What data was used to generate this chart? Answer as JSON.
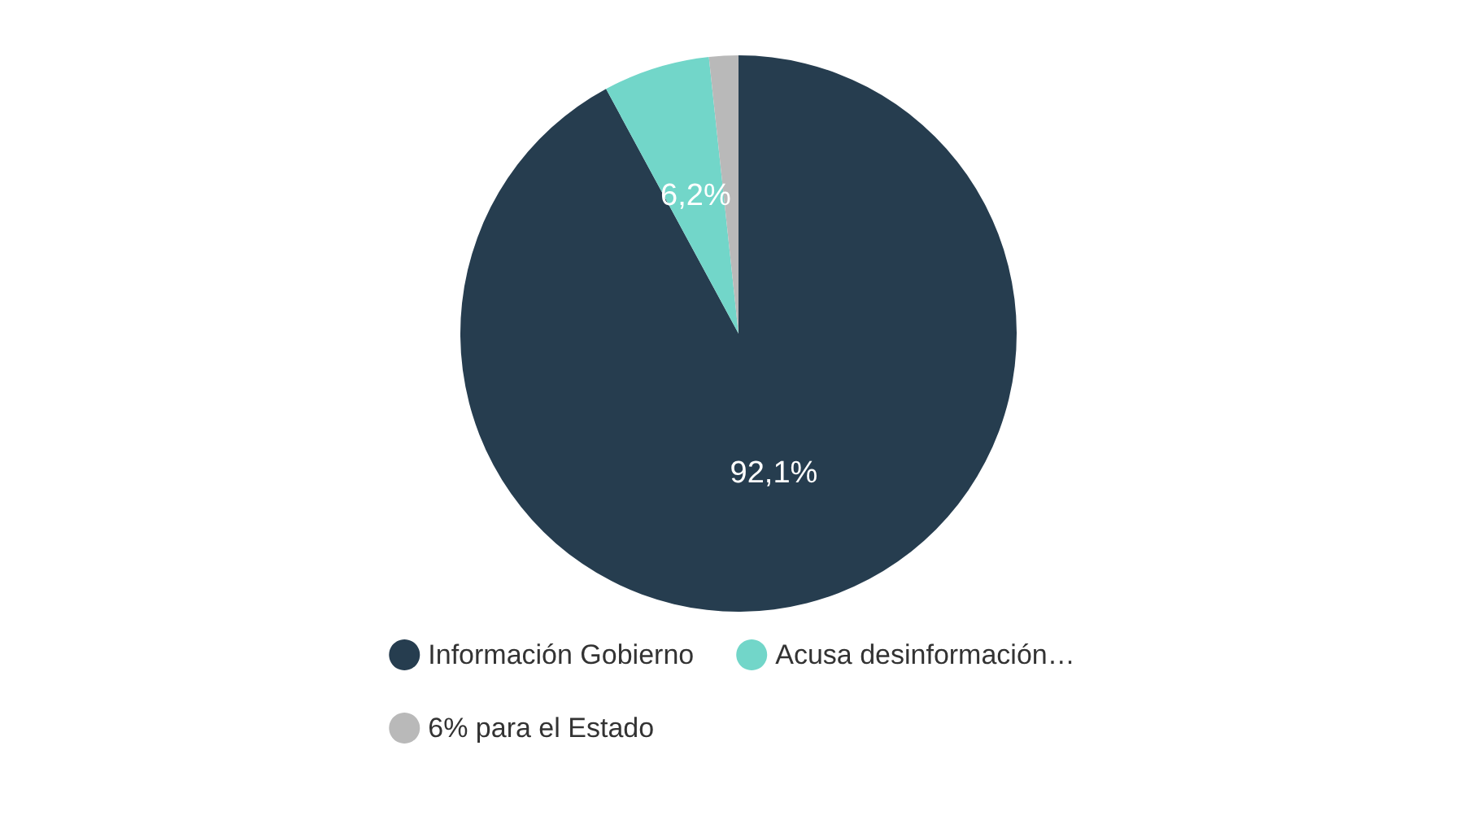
{
  "chart_data": {
    "type": "pie",
    "categories": [
      "Información Gobierno",
      "Acusa desinformación…",
      "6% para el Estado"
    ],
    "values": [
      92.1,
      6.2,
      1.7
    ],
    "colors": [
      "#263d4f",
      "#72d6c9",
      "#b9b9b9"
    ],
    "value_labels": [
      "92,1%",
      "6,2%",
      null
    ],
    "legend": "bottom"
  }
}
